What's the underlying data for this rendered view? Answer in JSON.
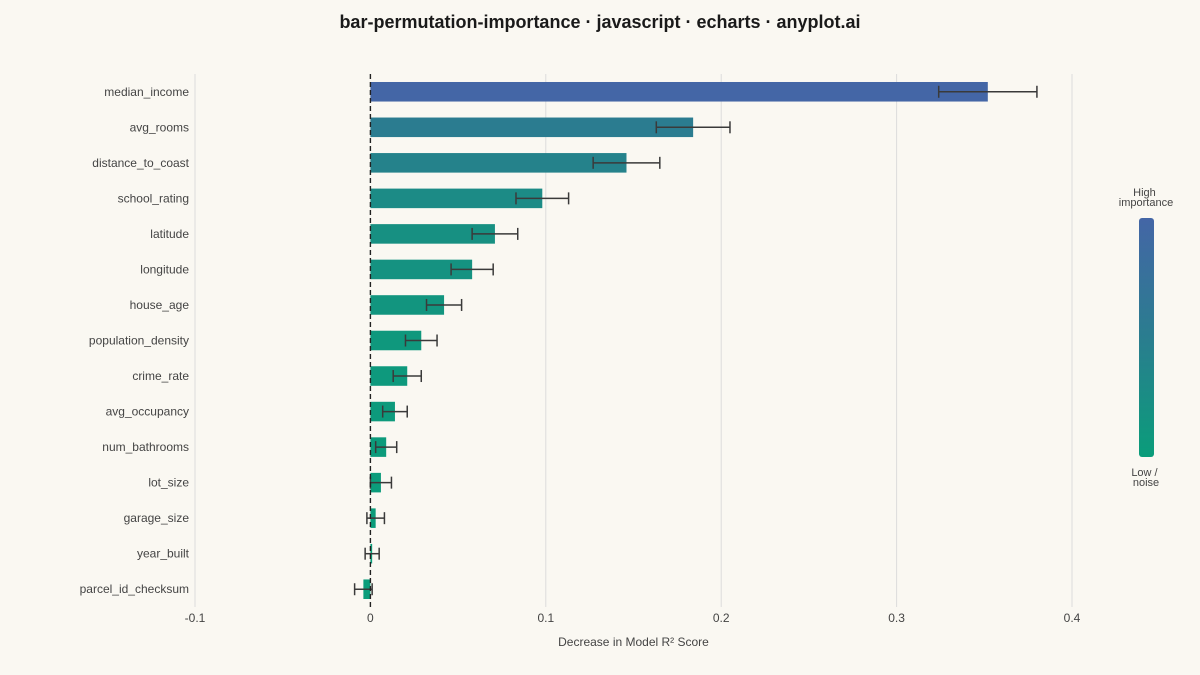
{
  "chart_data": {
    "type": "bar",
    "orientation": "horizontal",
    "title": "bar-permutation-importance · javascript · echarts · anyplot.ai",
    "xlabel": "Decrease in Model R² Score",
    "ylabel": "",
    "xlim": [
      -0.1,
      0.4
    ],
    "xticks": [
      -0.1,
      0,
      0.1,
      0.2,
      0.3,
      0.4
    ],
    "xtick_labels": [
      "-0.1",
      "0",
      "0.1",
      "0.2",
      "0.3",
      "0.4"
    ],
    "grid": "vertical",
    "reference_line": 0,
    "categories": [
      "median_income",
      "avg_rooms",
      "distance_to_coast",
      "school_rating",
      "latitude",
      "longitude",
      "house_age",
      "population_density",
      "crime_rate",
      "avg_occupancy",
      "num_bathrooms",
      "lot_size",
      "garage_size",
      "year_built",
      "parcel_id_checksum"
    ],
    "values": [
      0.352,
      0.184,
      0.146,
      0.098,
      0.071,
      0.058,
      0.042,
      0.029,
      0.021,
      0.014,
      0.009,
      0.006,
      0.003,
      0.001,
      -0.004
    ],
    "error_low": [
      0.324,
      0.163,
      0.127,
      0.083,
      0.058,
      0.046,
      0.032,
      0.02,
      0.013,
      0.007,
      0.003,
      0.0,
      -0.002,
      -0.003,
      -0.009
    ],
    "error_high": [
      0.38,
      0.205,
      0.165,
      0.113,
      0.084,
      0.07,
      0.052,
      0.038,
      0.029,
      0.021,
      0.015,
      0.012,
      0.008,
      0.005,
      0.001
    ],
    "colormap": {
      "high": "#4466a6",
      "mid": "#2a7d8f",
      "low": "#0a9d7a"
    },
    "legend": {
      "placement": "right",
      "high_label_lines": [
        "High",
        "importance"
      ],
      "low_label_lines": [
        "Low /",
        "noise"
      ]
    }
  }
}
